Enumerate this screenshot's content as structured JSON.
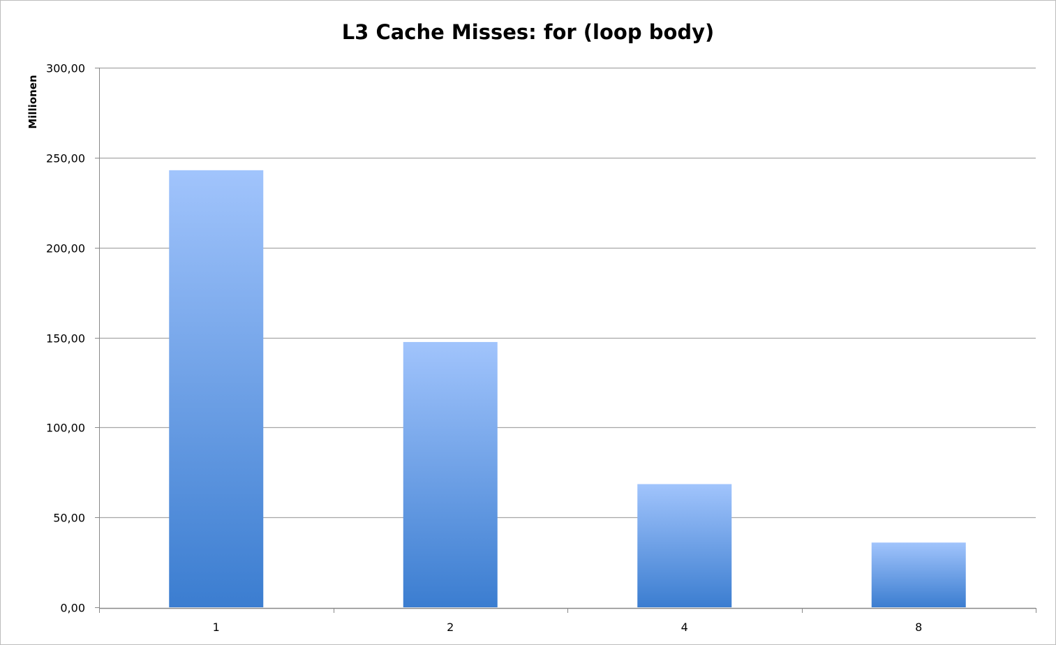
{
  "chart_data": {
    "type": "bar",
    "title": "L3 Cache Misses: for (loop body)",
    "xlabel": "",
    "ylabel": "Millionen",
    "categories": [
      "1",
      "2",
      "4",
      "8"
    ],
    "values": [
      243,
      147.5,
      68.5,
      36
    ],
    "ylim": [
      0,
      300
    ],
    "yticks": [
      {
        "value": 0,
        "label": "0,00"
      },
      {
        "value": 50,
        "label": "50,00"
      },
      {
        "value": 100,
        "label": "100,00"
      },
      {
        "value": 150,
        "label": "150,00"
      },
      {
        "value": 200,
        "label": "200,00"
      },
      {
        "value": 250,
        "label": "250,00"
      },
      {
        "value": 300,
        "label": "300,00"
      }
    ],
    "grid": true,
    "legend": "none",
    "colors": {
      "bar_top": "#a1c4fc",
      "bar_bottom": "#3b7dd0",
      "grid": "#a6a6a6",
      "axis": "#888888"
    }
  }
}
